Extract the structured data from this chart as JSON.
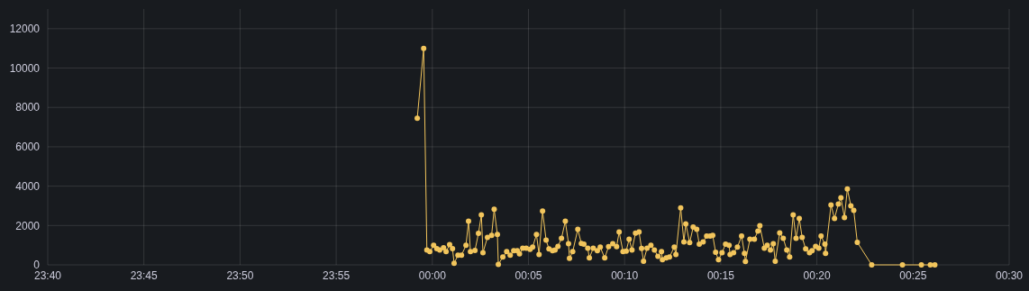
{
  "chart_data": {
    "type": "line",
    "marker": "circle",
    "line_style": "solid",
    "grid": true,
    "xlim": [
      "2000-01-01T23:40",
      "2000-01-02T00:30"
    ],
    "xticks": [
      {
        "value": "2000-01-01T23:40",
        "label": "23:40"
      },
      {
        "value": "2000-01-01T23:45",
        "label": "23:45"
      },
      {
        "value": "2000-01-01T23:50",
        "label": "23:50"
      },
      {
        "value": "2000-01-01T23:55",
        "label": "23:55"
      },
      {
        "value": "2000-01-02T00:00",
        "label": "00:00"
      },
      {
        "value": "2000-01-02T00:05",
        "label": "00:05"
      },
      {
        "value": "2000-01-02T00:10",
        "label": "00:10"
      },
      {
        "value": "2000-01-02T00:15",
        "label": "00:15"
      },
      {
        "value": "2000-01-02T00:20",
        "label": "00:20"
      },
      {
        "value": "2000-01-02T00:25",
        "label": "00:25"
      },
      {
        "value": "2000-01-02T00:30",
        "label": "00:30"
      }
    ],
    "ylim": [
      0,
      13000
    ],
    "yticks": [
      0,
      2000,
      4000,
      6000,
      8000,
      10000,
      12000
    ],
    "series": [
      {
        "color": "#f2c55c",
        "x": [
          "2000-01-01T23:59:13",
          "2000-01-01T23:59:33",
          "2000-01-01T23:59:43",
          "2000-01-01T23:59:52",
          "2000-01-02T00:00:04",
          "2000-01-02T00:00:14",
          "2000-01-02T00:00:23",
          "2000-01-02T00:00:35",
          "2000-01-02T00:00:43",
          "2000-01-02T00:00:54",
          "2000-01-02T00:01:03",
          "2000-01-02T00:01:08",
          "2000-01-02T00:01:20",
          "2000-01-02T00:01:31",
          "2000-01-02T00:01:45",
          "2000-01-02T00:01:53",
          "2000-01-02T00:01:59",
          "2000-01-02T00:02:13",
          "2000-01-02T00:02:24",
          "2000-01-02T00:02:33",
          "2000-01-02T00:02:38",
          "2000-01-02T00:02:52",
          "2000-01-02T00:03:05",
          "2000-01-02T00:03:13",
          "2000-01-02T00:03:23",
          "2000-01-02T00:03:26",
          "2000-01-02T00:03:40",
          "2000-01-02T00:03:52",
          "2000-01-02T00:04:03",
          "2000-01-02T00:04:14",
          "2000-01-02T00:04:25",
          "2000-01-02T00:04:32",
          "2000-01-02T00:04:42",
          "2000-01-02T00:04:53",
          "2000-01-02T00:05:05",
          "2000-01-02T00:05:13",
          "2000-01-02T00:05:25",
          "2000-01-02T00:05:33",
          "2000-01-02T00:05:44",
          "2000-01-02T00:05:55",
          "2000-01-02T00:06:04",
          "2000-01-02T00:06:15",
          "2000-01-02T00:06:23",
          "2000-01-02T00:06:32",
          "2000-01-02T00:06:43",
          "2000-01-02T00:06:55",
          "2000-01-02T00:07:05",
          "2000-01-02T00:07:08",
          "2000-01-02T00:07:18",
          "2000-01-02T00:07:34",
          "2000-01-02T00:07:45",
          "2000-01-02T00:07:53",
          "2000-01-02T00:08:05",
          "2000-01-02T00:08:10",
          "2000-01-02T00:08:22",
          "2000-01-02T00:08:35",
          "2000-01-02T00:08:44",
          "2000-01-02T00:08:58",
          "2000-01-02T00:09:10",
          "2000-01-02T00:09:23",
          "2000-01-02T00:09:35",
          "2000-01-02T00:09:43",
          "2000-01-02T00:09:55",
          "2000-01-02T00:10:05",
          "2000-01-02T00:10:14",
          "2000-01-02T00:10:23",
          "2000-01-02T00:10:34",
          "2000-01-02T00:10:45",
          "2000-01-02T00:10:53",
          "2000-01-02T00:10:59",
          "2000-01-02T00:11:10",
          "2000-01-02T00:11:22",
          "2000-01-02T00:11:33",
          "2000-01-02T00:11:44",
          "2000-01-02T00:11:55",
          "2000-01-02T00:11:58",
          "2000-01-02T00:12:10",
          "2000-01-02T00:12:20",
          "2000-01-02T00:12:35",
          "2000-01-02T00:12:40",
          "2000-01-02T00:12:55",
          "2000-01-02T00:13:05",
          "2000-01-02T00:13:11",
          "2000-01-02T00:13:23",
          "2000-01-02T00:13:34",
          "2000-01-02T00:13:45",
          "2000-01-02T00:13:53",
          "2000-01-02T00:14:05",
          "2000-01-02T00:14:16",
          "2000-01-02T00:14:27",
          "2000-01-02T00:14:35",
          "2000-01-02T00:14:44",
          "2000-01-02T00:14:53",
          "2000-01-02T00:15:04",
          "2000-01-02T00:15:15",
          "2000-01-02T00:15:26",
          "2000-01-02T00:15:29",
          "2000-01-02T00:15:40",
          "2000-01-02T00:15:52",
          "2000-01-02T00:16:05",
          "2000-01-02T00:16:14",
          "2000-01-02T00:16:17",
          "2000-01-02T00:16:31",
          "2000-01-02T00:16:45",
          "2000-01-02T00:16:56",
          "2000-01-02T00:17:02",
          "2000-01-02T00:17:16",
          "2000-01-02T00:17:25",
          "2000-01-02T00:17:35",
          "2000-01-02T00:17:44",
          "2000-01-02T00:17:50",
          "2000-01-02T00:18:04",
          "2000-01-02T00:18:15",
          "2000-01-02T00:18:26",
          "2000-01-02T00:18:35",
          "2000-01-02T00:18:46",
          "2000-01-02T00:18:55",
          "2000-01-02T00:19:05",
          "2000-01-02T00:19:14",
          "2000-01-02T00:19:25",
          "2000-01-02T00:19:37",
          "2000-01-02T00:19:45",
          "2000-01-02T00:19:56",
          "2000-01-02T00:20:06",
          "2000-01-02T00:20:13",
          "2000-01-02T00:20:25",
          "2000-01-02T00:20:27",
          "2000-01-02T00:20:44",
          "2000-01-02T00:20:55",
          "2000-01-02T00:21:07",
          "2000-01-02T00:21:15",
          "2000-01-02T00:21:26",
          "2000-01-02T00:21:35",
          "2000-01-02T00:21:46",
          "2000-01-02T00:21:55",
          "2000-01-02T00:22:06",
          "2000-01-02T00:22:51",
          "2000-01-02T00:24:27",
          "2000-01-02T00:25:26",
          "2000-01-02T00:25:54",
          "2000-01-02T00:26:08"
        ],
        "values": [
          7450,
          11000,
          760,
          670,
          990,
          820,
          760,
          870,
          670,
          1030,
          820,
          80,
          490,
          490,
          990,
          2220,
          670,
          730,
          1600,
          2540,
          620,
          1400,
          1500,
          2830,
          1540,
          20,
          400,
          670,
          490,
          720,
          720,
          560,
          850,
          850,
          790,
          900,
          1540,
          530,
          2740,
          1260,
          810,
          720,
          760,
          940,
          1350,
          2220,
          1080,
          330,
          670,
          1810,
          1090,
          1050,
          850,
          350,
          850,
          720,
          900,
          350,
          930,
          1080,
          930,
          1670,
          670,
          700,
          1310,
          760,
          1610,
          1670,
          830,
          180,
          850,
          990,
          760,
          440,
          670,
          260,
          350,
          400,
          900,
          530,
          2900,
          1170,
          2080,
          1130,
          1920,
          1810,
          1050,
          1170,
          1460,
          1460,
          1500,
          640,
          260,
          620,
          1050,
          1000,
          530,
          620,
          900,
          1460,
          580,
          170,
          1310,
          1310,
          1720,
          1990,
          850,
          1000,
          760,
          1080,
          180,
          1630,
          1350,
          760,
          400,
          2540,
          1350,
          2360,
          1400,
          810,
          620,
          720,
          940,
          850,
          1460,
          1050,
          580,
          3040,
          2360,
          3090,
          3410,
          2400,
          3860,
          3000,
          2770,
          1150,
          0,
          0,
          0,
          0,
          0
        ]
      }
    ]
  }
}
